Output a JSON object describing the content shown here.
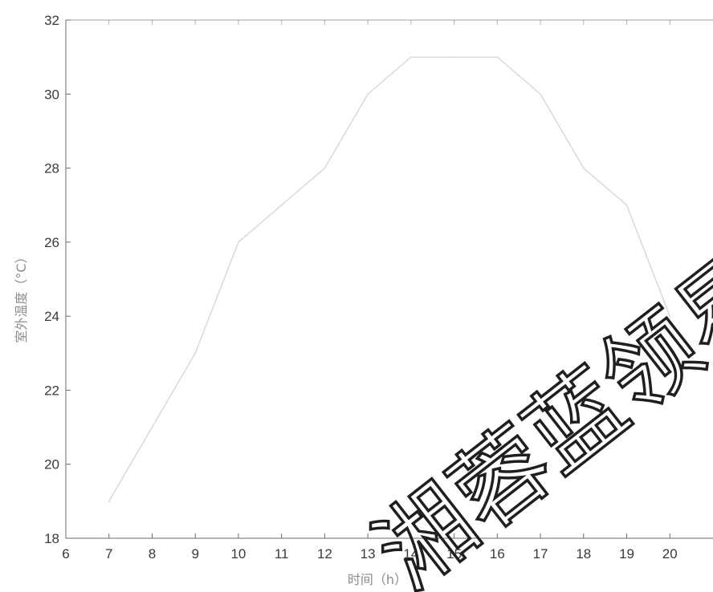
{
  "chart_data": {
    "type": "line",
    "xlabel": "时间（h）",
    "ylabel": "室外温度（°C）",
    "xlim": [
      6,
      21
    ],
    "ylim": [
      18,
      32
    ],
    "x_ticks": [
      6,
      7,
      8,
      9,
      10,
      11,
      12,
      13,
      14,
      15,
      16,
      17,
      18,
      19,
      20
    ],
    "y_ticks": [
      18,
      20,
      22,
      24,
      26,
      28,
      30,
      32
    ],
    "grid": false,
    "series": [
      {
        "x": [
          7,
          8,
          9,
          10,
          11,
          12,
          13,
          14,
          15,
          16,
          17,
          18,
          19,
          20
        ],
        "y": [
          19,
          21,
          23,
          26,
          27,
          28,
          30,
          31,
          31,
          31,
          30,
          28,
          27,
          24
        ]
      }
    ]
  },
  "watermark": {
    "text": "湘蓉蓝领易"
  },
  "colors": {
    "line": "#d4d4d4",
    "axis": "#6b6b6b",
    "watermark": "#1f1f1f"
  }
}
